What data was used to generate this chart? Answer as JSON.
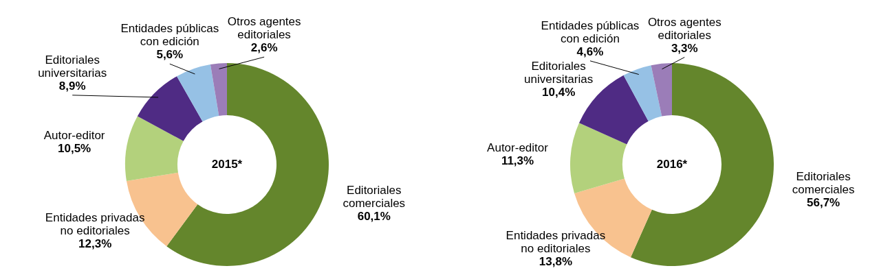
{
  "chart_data": [
    {
      "type": "donut",
      "title": "2015*",
      "categories": [
        "Editoriales comerciales",
        "Entidades privadas no editoriales",
        "Autor-editor",
        "Editoriales universitarias",
        "Entidades públicas con edición",
        "Otros agentes editoriales"
      ],
      "values": [
        60.1,
        12.3,
        10.5,
        8.9,
        5.6,
        2.6
      ],
      "colors": [
        "#64862c",
        "#f8c28f",
        "#b3d17c",
        "#4f2b84",
        "#96c1e5",
        "#9b7db8"
      ],
      "value_labels": [
        "60,1%",
        "12,3%",
        "10,5%",
        "8,9%",
        "5,6%",
        "2,6%"
      ]
    },
    {
      "type": "donut",
      "title": "2016*",
      "categories": [
        "Editoriales comerciales",
        "Entidades privadas no editoriales",
        "Autor-editor",
        "Editoriales universitarias",
        "Entidades públicas con edición",
        "Otros agentes editoriales"
      ],
      "values": [
        56.7,
        13.8,
        11.3,
        10.4,
        4.6,
        3.3
      ],
      "colors": [
        "#64862c",
        "#f8c28f",
        "#b3d17c",
        "#4f2b84",
        "#96c1e5",
        "#9b7db8"
      ],
      "value_labels": [
        "56,7%",
        "13,8%",
        "11,3%",
        "10,4%",
        "4,6%",
        "3,3%"
      ]
    }
  ]
}
